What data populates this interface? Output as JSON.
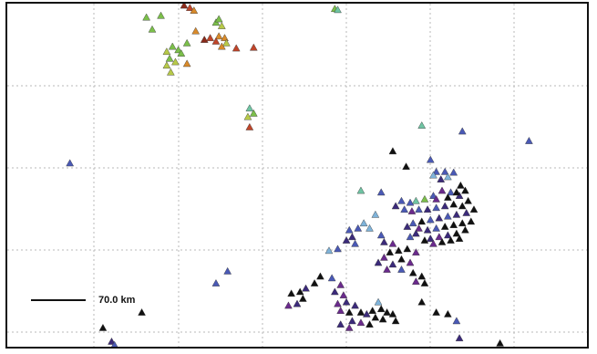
{
  "map": {
    "scale_label": "70.0 km",
    "colors": {
      "black": "#111111",
      "indigo": "#3b2a7a",
      "purple": "#6a2a8c",
      "blue": "#4a59b5",
      "lightblue": "#7fb3d9",
      "teal": "#6fc4a3",
      "green": "#7bbf4a",
      "yellowgreen": "#b7c948",
      "orange": "#d88a2a",
      "red": "#c0452a",
      "darkred": "#8a2a1a"
    },
    "markers": [
      {
        "x": 0.305,
        "y": 0.005,
        "c": "darkred"
      },
      {
        "x": 0.315,
        "y": 0.012,
        "c": "red"
      },
      {
        "x": 0.322,
        "y": 0.02,
        "c": "orange"
      },
      {
        "x": 0.24,
        "y": 0.04,
        "c": "green"
      },
      {
        "x": 0.265,
        "y": 0.035,
        "c": "green"
      },
      {
        "x": 0.36,
        "y": 0.055,
        "c": "green"
      },
      {
        "x": 0.37,
        "y": 0.065,
        "c": "yellowgreen"
      },
      {
        "x": 0.365,
        "y": 0.045,
        "c": "green"
      },
      {
        "x": 0.25,
        "y": 0.075,
        "c": "green"
      },
      {
        "x": 0.325,
        "y": 0.08,
        "c": "orange"
      },
      {
        "x": 0.35,
        "y": 0.1,
        "c": "red"
      },
      {
        "x": 0.365,
        "y": 0.095,
        "c": "orange"
      },
      {
        "x": 0.375,
        "y": 0.1,
        "c": "orange"
      },
      {
        "x": 0.34,
        "y": 0.105,
        "c": "darkred"
      },
      {
        "x": 0.36,
        "y": 0.11,
        "c": "red"
      },
      {
        "x": 0.378,
        "y": 0.115,
        "c": "yellowgreen"
      },
      {
        "x": 0.37,
        "y": 0.125,
        "c": "orange"
      },
      {
        "x": 0.31,
        "y": 0.115,
        "c": "green"
      },
      {
        "x": 0.395,
        "y": 0.13,
        "c": "red"
      },
      {
        "x": 0.425,
        "y": 0.128,
        "c": "red"
      },
      {
        "x": 0.285,
        "y": 0.125,
        "c": "green"
      },
      {
        "x": 0.295,
        "y": 0.135,
        "c": "green"
      },
      {
        "x": 0.275,
        "y": 0.14,
        "c": "yellowgreen"
      },
      {
        "x": 0.3,
        "y": 0.145,
        "c": "green"
      },
      {
        "x": 0.28,
        "y": 0.16,
        "c": "green"
      },
      {
        "x": 0.29,
        "y": 0.17,
        "c": "yellowgreen"
      },
      {
        "x": 0.31,
        "y": 0.175,
        "c": "orange"
      },
      {
        "x": 0.275,
        "y": 0.18,
        "c": "yellowgreen"
      },
      {
        "x": 0.282,
        "y": 0.2,
        "c": "yellowgreen"
      },
      {
        "x": 0.565,
        "y": 0.015,
        "c": "green"
      },
      {
        "x": 0.57,
        "y": 0.018,
        "c": "teal"
      },
      {
        "x": 0.418,
        "y": 0.305,
        "c": "teal"
      },
      {
        "x": 0.425,
        "y": 0.32,
        "c": "green"
      },
      {
        "x": 0.415,
        "y": 0.33,
        "c": "yellowgreen"
      },
      {
        "x": 0.418,
        "y": 0.36,
        "c": "red"
      },
      {
        "x": 0.108,
        "y": 0.465,
        "c": "blue"
      },
      {
        "x": 0.715,
        "y": 0.355,
        "c": "teal"
      },
      {
        "x": 0.785,
        "y": 0.372,
        "c": "blue"
      },
      {
        "x": 0.9,
        "y": 0.4,
        "c": "blue"
      },
      {
        "x": 0.665,
        "y": 0.43,
        "c": "black"
      },
      {
        "x": 0.688,
        "y": 0.475,
        "c": "black"
      },
      {
        "x": 0.73,
        "y": 0.455,
        "c": "blue"
      },
      {
        "x": 0.74,
        "y": 0.49,
        "c": "blue"
      },
      {
        "x": 0.735,
        "y": 0.5,
        "c": "lightblue"
      },
      {
        "x": 0.755,
        "y": 0.49,
        "c": "blue"
      },
      {
        "x": 0.748,
        "y": 0.512,
        "c": "indigo"
      },
      {
        "x": 0.76,
        "y": 0.505,
        "c": "lightblue"
      },
      {
        "x": 0.77,
        "y": 0.492,
        "c": "blue"
      },
      {
        "x": 0.782,
        "y": 0.53,
        "c": "black"
      },
      {
        "x": 0.79,
        "y": 0.545,
        "c": "black"
      },
      {
        "x": 0.78,
        "y": 0.56,
        "c": "indigo"
      },
      {
        "x": 0.765,
        "y": 0.55,
        "c": "blue"
      },
      {
        "x": 0.75,
        "y": 0.545,
        "c": "purple"
      },
      {
        "x": 0.735,
        "y": 0.56,
        "c": "blue"
      },
      {
        "x": 0.72,
        "y": 0.57,
        "c": "green"
      },
      {
        "x": 0.705,
        "y": 0.575,
        "c": "teal"
      },
      {
        "x": 0.695,
        "y": 0.58,
        "c": "blue"
      },
      {
        "x": 0.68,
        "y": 0.575,
        "c": "blue"
      },
      {
        "x": 0.67,
        "y": 0.59,
        "c": "indigo"
      },
      {
        "x": 0.685,
        "y": 0.6,
        "c": "blue"
      },
      {
        "x": 0.698,
        "y": 0.605,
        "c": "purple"
      },
      {
        "x": 0.71,
        "y": 0.6,
        "c": "blue"
      },
      {
        "x": 0.725,
        "y": 0.6,
        "c": "indigo"
      },
      {
        "x": 0.74,
        "y": 0.595,
        "c": "blue"
      },
      {
        "x": 0.755,
        "y": 0.59,
        "c": "indigo"
      },
      {
        "x": 0.77,
        "y": 0.585,
        "c": "black"
      },
      {
        "x": 0.785,
        "y": 0.59,
        "c": "black"
      },
      {
        "x": 0.795,
        "y": 0.575,
        "c": "black"
      },
      {
        "x": 0.805,
        "y": 0.6,
        "c": "black"
      },
      {
        "x": 0.792,
        "y": 0.61,
        "c": "indigo"
      },
      {
        "x": 0.775,
        "y": 0.615,
        "c": "indigo"
      },
      {
        "x": 0.76,
        "y": 0.62,
        "c": "blue"
      },
      {
        "x": 0.745,
        "y": 0.625,
        "c": "indigo"
      },
      {
        "x": 0.73,
        "y": 0.63,
        "c": "blue"
      },
      {
        "x": 0.715,
        "y": 0.635,
        "c": "black"
      },
      {
        "x": 0.7,
        "y": 0.64,
        "c": "blue"
      },
      {
        "x": 0.69,
        "y": 0.65,
        "c": "indigo"
      },
      {
        "x": 0.71,
        "y": 0.655,
        "c": "purple"
      },
      {
        "x": 0.725,
        "y": 0.66,
        "c": "indigo"
      },
      {
        "x": 0.74,
        "y": 0.655,
        "c": "blue"
      },
      {
        "x": 0.755,
        "y": 0.65,
        "c": "black"
      },
      {
        "x": 0.77,
        "y": 0.645,
        "c": "black"
      },
      {
        "x": 0.785,
        "y": 0.64,
        "c": "black"
      },
      {
        "x": 0.8,
        "y": 0.635,
        "c": "black"
      },
      {
        "x": 0.79,
        "y": 0.66,
        "c": "black"
      },
      {
        "x": 0.775,
        "y": 0.67,
        "c": "black"
      },
      {
        "x": 0.76,
        "y": 0.675,
        "c": "indigo"
      },
      {
        "x": 0.745,
        "y": 0.68,
        "c": "purple"
      },
      {
        "x": 0.73,
        "y": 0.685,
        "c": "indigo"
      },
      {
        "x": 0.75,
        "y": 0.695,
        "c": "black"
      },
      {
        "x": 0.735,
        "y": 0.7,
        "c": "purple"
      },
      {
        "x": 0.72,
        "y": 0.69,
        "c": "black"
      },
      {
        "x": 0.765,
        "y": 0.69,
        "c": "black"
      },
      {
        "x": 0.78,
        "y": 0.685,
        "c": "black"
      },
      {
        "x": 0.705,
        "y": 0.67,
        "c": "indigo"
      },
      {
        "x": 0.695,
        "y": 0.68,
        "c": "blue"
      },
      {
        "x": 0.74,
        "y": 0.57,
        "c": "purple"
      },
      {
        "x": 0.76,
        "y": 0.565,
        "c": "black"
      },
      {
        "x": 0.775,
        "y": 0.55,
        "c": "black"
      },
      {
        "x": 0.61,
        "y": 0.545,
        "c": "teal"
      },
      {
        "x": 0.645,
        "y": 0.55,
        "c": "blue"
      },
      {
        "x": 0.635,
        "y": 0.615,
        "c": "lightblue"
      },
      {
        "x": 0.615,
        "y": 0.64,
        "c": "lightblue"
      },
      {
        "x": 0.625,
        "y": 0.655,
        "c": "lightblue"
      },
      {
        "x": 0.605,
        "y": 0.655,
        "c": "blue"
      },
      {
        "x": 0.59,
        "y": 0.66,
        "c": "blue"
      },
      {
        "x": 0.595,
        "y": 0.68,
        "c": "indigo"
      },
      {
        "x": 0.585,
        "y": 0.69,
        "c": "indigo"
      },
      {
        "x": 0.6,
        "y": 0.7,
        "c": "blue"
      },
      {
        "x": 0.555,
        "y": 0.72,
        "c": "lightblue"
      },
      {
        "x": 0.57,
        "y": 0.715,
        "c": "blue"
      },
      {
        "x": 0.645,
        "y": 0.675,
        "c": "blue"
      },
      {
        "x": 0.65,
        "y": 0.695,
        "c": "indigo"
      },
      {
        "x": 0.665,
        "y": 0.7,
        "c": "purple"
      },
      {
        "x": 0.66,
        "y": 0.725,
        "c": "black"
      },
      {
        "x": 0.675,
        "y": 0.72,
        "c": "black"
      },
      {
        "x": 0.69,
        "y": 0.715,
        "c": "black"
      },
      {
        "x": 0.705,
        "y": 0.725,
        "c": "purple"
      },
      {
        "x": 0.68,
        "y": 0.745,
        "c": "black"
      },
      {
        "x": 0.695,
        "y": 0.755,
        "c": "purple"
      },
      {
        "x": 0.665,
        "y": 0.76,
        "c": "indigo"
      },
      {
        "x": 0.65,
        "y": 0.74,
        "c": "purple"
      },
      {
        "x": 0.64,
        "y": 0.755,
        "c": "indigo"
      },
      {
        "x": 0.655,
        "y": 0.775,
        "c": "purple"
      },
      {
        "x": 0.68,
        "y": 0.775,
        "c": "blue"
      },
      {
        "x": 0.7,
        "y": 0.785,
        "c": "black"
      },
      {
        "x": 0.715,
        "y": 0.795,
        "c": "black"
      },
      {
        "x": 0.705,
        "y": 0.81,
        "c": "purple"
      },
      {
        "x": 0.72,
        "y": 0.815,
        "c": "black"
      },
      {
        "x": 0.54,
        "y": 0.795,
        "c": "black"
      },
      {
        "x": 0.53,
        "y": 0.815,
        "c": "black"
      },
      {
        "x": 0.515,
        "y": 0.83,
        "c": "indigo"
      },
      {
        "x": 0.505,
        "y": 0.84,
        "c": "black"
      },
      {
        "x": 0.51,
        "y": 0.86,
        "c": "black"
      },
      {
        "x": 0.49,
        "y": 0.845,
        "c": "black"
      },
      {
        "x": 0.5,
        "y": 0.875,
        "c": "indigo"
      },
      {
        "x": 0.485,
        "y": 0.88,
        "c": "purple"
      },
      {
        "x": 0.56,
        "y": 0.8,
        "c": "blue"
      },
      {
        "x": 0.575,
        "y": 0.82,
        "c": "purple"
      },
      {
        "x": 0.565,
        "y": 0.84,
        "c": "indigo"
      },
      {
        "x": 0.58,
        "y": 0.85,
        "c": "purple"
      },
      {
        "x": 0.585,
        "y": 0.87,
        "c": "indigo"
      },
      {
        "x": 0.57,
        "y": 0.875,
        "c": "purple"
      },
      {
        "x": 0.575,
        "y": 0.895,
        "c": "purple"
      },
      {
        "x": 0.59,
        "y": 0.9,
        "c": "black"
      },
      {
        "x": 0.6,
        "y": 0.88,
        "c": "indigo"
      },
      {
        "x": 0.61,
        "y": 0.9,
        "c": "black"
      },
      {
        "x": 0.62,
        "y": 0.905,
        "c": "indigo"
      },
      {
        "x": 0.63,
        "y": 0.895,
        "c": "black"
      },
      {
        "x": 0.64,
        "y": 0.87,
        "c": "lightblue"
      },
      {
        "x": 0.645,
        "y": 0.89,
        "c": "black"
      },
      {
        "x": 0.655,
        "y": 0.9,
        "c": "black"
      },
      {
        "x": 0.648,
        "y": 0.92,
        "c": "black"
      },
      {
        "x": 0.595,
        "y": 0.925,
        "c": "indigo"
      },
      {
        "x": 0.61,
        "y": 0.93,
        "c": "purple"
      },
      {
        "x": 0.625,
        "y": 0.935,
        "c": "black"
      },
      {
        "x": 0.575,
        "y": 0.935,
        "c": "indigo"
      },
      {
        "x": 0.59,
        "y": 0.945,
        "c": "purple"
      },
      {
        "x": 0.635,
        "y": 0.915,
        "c": "black"
      },
      {
        "x": 0.665,
        "y": 0.905,
        "c": "black"
      },
      {
        "x": 0.67,
        "y": 0.925,
        "c": "black"
      },
      {
        "x": 0.38,
        "y": 0.78,
        "c": "blue"
      },
      {
        "x": 0.36,
        "y": 0.815,
        "c": "blue"
      },
      {
        "x": 0.715,
        "y": 0.87,
        "c": "black"
      },
      {
        "x": 0.74,
        "y": 0.9,
        "c": "black"
      },
      {
        "x": 0.775,
        "y": 0.925,
        "c": "blue"
      },
      {
        "x": 0.76,
        "y": 0.905,
        "c": "black"
      },
      {
        "x": 0.78,
        "y": 0.975,
        "c": "indigo"
      },
      {
        "x": 0.85,
        "y": 0.99,
        "c": "black"
      },
      {
        "x": 0.165,
        "y": 0.945,
        "c": "black"
      },
      {
        "x": 0.232,
        "y": 0.9,
        "c": "black"
      },
      {
        "x": 0.18,
        "y": 0.985,
        "c": "indigo"
      },
      {
        "x": 0.185,
        "y": 0.995,
        "c": "blue"
      }
    ]
  }
}
